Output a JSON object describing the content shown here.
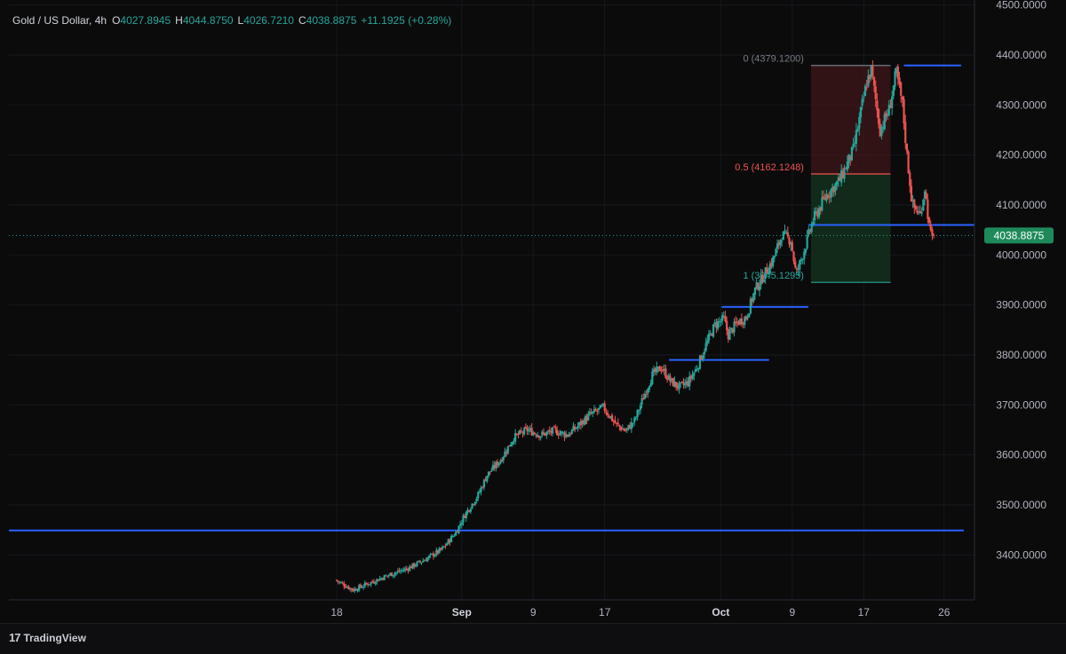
{
  "header": {
    "symbol": "Gold / US Dollar, 4h",
    "o_label": "O",
    "o_value": "4027.8945",
    "h_label": "H",
    "h_value": "4044.8750",
    "l_label": "L",
    "l_value": "4026.7210",
    "c_label": "C",
    "c_value": "4038.8875",
    "change": "+11.1925 (+0.28%)"
  },
  "brand": {
    "logo": "17",
    "name": "TradingView"
  },
  "colors": {
    "background": "#0b0b0c",
    "up": "#26a69a",
    "down": "#ef5350",
    "level_line": "#2962ff",
    "fib_top_zone": "#3a1518",
    "fib_bottom_zone": "#13301c",
    "price_tag": "#1e8a5a"
  },
  "chart_data": {
    "type": "candlestick",
    "title": "Gold / US Dollar, 4h",
    "xlabel": "",
    "ylabel": "",
    "ylim": [
      3310,
      4510
    ],
    "y_ticks": [
      "4500.0000",
      "4400.0000",
      "4300.0000",
      "4200.0000",
      "4100.0000",
      "4000.0000",
      "3900.0000",
      "3800.0000",
      "3700.0000",
      "3600.0000",
      "3500.0000",
      "3400.0000"
    ],
    "y_tick_values": [
      4500,
      4400,
      4300,
      4200,
      4100,
      4000,
      3900,
      3800,
      3700,
      3600,
      3500,
      3400
    ],
    "x_ticks": [
      "18",
      "Sep",
      "9",
      "17",
      "Oct",
      "9",
      "17",
      "26"
    ],
    "x_tick_days": [
      0,
      14,
      22,
      30,
      43,
      51,
      59,
      68
    ],
    "x_domain_days": [
      -36.7,
      71.4
    ],
    "last_price": 4038.8875,
    "last_price_label": "4038.8875",
    "price_path": [
      [
        0,
        3350
      ],
      [
        2,
        3330
      ],
      [
        4,
        3345
      ],
      [
        6,
        3360
      ],
      [
        8,
        3372
      ],
      [
        10,
        3390
      ],
      [
        12,
        3412
      ],
      [
        13.5,
        3445
      ],
      [
        14.5,
        3480
      ],
      [
        16,
        3520
      ],
      [
        17,
        3560
      ],
      [
        18.5,
        3590
      ],
      [
        20,
        3635
      ],
      [
        21.5,
        3650
      ],
      [
        23,
        3640
      ],
      [
        24.5,
        3648
      ],
      [
        26,
        3640
      ],
      [
        27,
        3655
      ],
      [
        28.5,
        3680
      ],
      [
        30,
        3695
      ],
      [
        31.5,
        3660
      ],
      [
        32.5,
        3648
      ],
      [
        33.5,
        3668
      ],
      [
        34.5,
        3715
      ],
      [
        35.5,
        3760
      ],
      [
        36.5,
        3775
      ],
      [
        37.5,
        3748
      ],
      [
        38.5,
        3735
      ],
      [
        39.5,
        3745
      ],
      [
        40.5,
        3775
      ],
      [
        41.5,
        3820
      ],
      [
        42.5,
        3860
      ],
      [
        43.5,
        3872
      ],
      [
        44,
        3840
      ],
      [
        45,
        3865
      ],
      [
        46,
        3875
      ],
      [
        47,
        3930
      ],
      [
        48,
        3960
      ],
      [
        49,
        3990
      ],
      [
        50,
        4040
      ],
      [
        51,
        4030
      ],
      [
        51.6,
        3960
      ],
      [
        52.5,
        4010
      ],
      [
        53.5,
        4070
      ],
      [
        55,
        4120
      ],
      [
        56.5,
        4150
      ],
      [
        58,
        4210
      ],
      [
        59.5,
        4345
      ],
      [
        60,
        4370
      ],
      [
        61,
        4250
      ],
      [
        62,
        4290
      ],
      [
        62.8,
        4365
      ],
      [
        63.5,
        4300
      ],
      [
        64,
        4200
      ],
      [
        64.6,
        4100
      ],
      [
        65.5,
        4080
      ],
      [
        66,
        4135
      ],
      [
        66.6,
        4040
      ],
      [
        66.9,
        4038.8875
      ]
    ],
    "levels": [
      {
        "price": 3449,
        "from_day": -36.7,
        "to_day": 70.2
      },
      {
        "price": 3790,
        "from_day": 37.2,
        "to_day": 48.4
      },
      {
        "price": 3896,
        "from_day": 43.1,
        "to_day": 52.8
      },
      {
        "price": 4060,
        "from_day": 52.8,
        "to_day": 71.5
      },
      {
        "price": 4379.12,
        "from_day": 63.5,
        "to_day": 69.9
      }
    ],
    "fibonacci": {
      "from_day": 53.1,
      "to_day": 62.0,
      "levels": [
        {
          "ratio": "0",
          "label": "0 (4379.1200)",
          "price": 4379.12
        },
        {
          "ratio": "0.5",
          "label": "0.5 (4162.1248)",
          "price": 4162.1248
        },
        {
          "ratio": "1",
          "label": "1 (3945.1295)",
          "price": 3945.1295
        }
      ]
    }
  }
}
